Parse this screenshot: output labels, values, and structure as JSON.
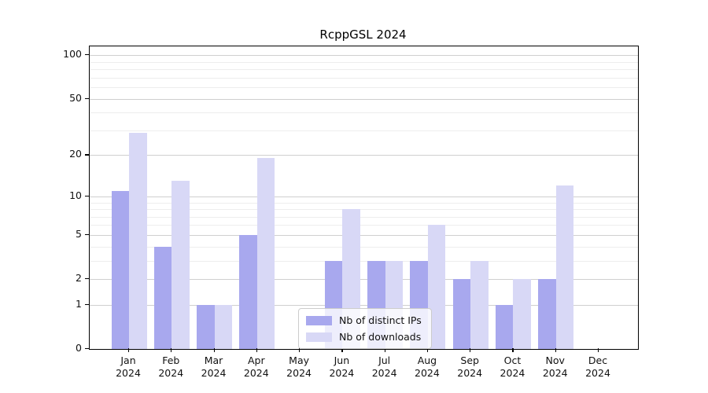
{
  "chart_data": {
    "type": "bar",
    "title": "RcppGSL 2024",
    "categories": [
      "Jan",
      "Feb",
      "Mar",
      "Apr",
      "May",
      "Jun",
      "Jul",
      "Aug",
      "Sep",
      "Oct",
      "Nov",
      "Dec"
    ],
    "x_second_line": "2024",
    "series": [
      {
        "name": "Nb of distinct IPs",
        "color": "#a8a8ee",
        "values": [
          11,
          4,
          1,
          5,
          0,
          3,
          3,
          3,
          2,
          1,
          2,
          0
        ]
      },
      {
        "name": "Nb of downloads",
        "color": "#d8d8f6",
        "values": [
          29,
          13,
          1,
          19,
          0,
          8,
          3,
          6,
          3,
          2,
          12,
          0
        ]
      }
    ],
    "xlabel": "",
    "ylabel": "",
    "y_axis": {
      "scale": "log1p",
      "tick_labels": [
        0,
        1,
        2,
        5,
        10,
        20,
        50,
        100
      ],
      "major_gridlines": [
        1,
        2,
        5,
        10,
        20,
        50,
        100
      ],
      "minor_gridlines": [
        3,
        4,
        6,
        7,
        8,
        9,
        30,
        40,
        60,
        70,
        80,
        90
      ],
      "ylim": [
        0,
        115
      ]
    },
    "grid": "horizontal",
    "legend_position": "bottom-center"
  },
  "colors": {
    "background": "#ffffff",
    "axis": "#000000",
    "major_grid": "#cfcfcf",
    "minor_grid": "#ededed",
    "text": "#111111"
  }
}
